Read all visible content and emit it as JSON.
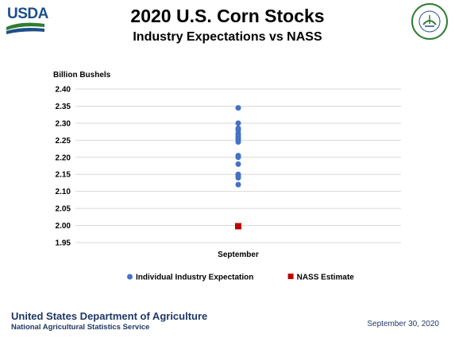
{
  "header": {
    "logo_text": "USDA",
    "title": "2020 U.S. Corn Stocks",
    "subtitle": "Industry Expectations vs NASS",
    "seal_text": "AGRICULTURE COUNTS"
  },
  "colors": {
    "expectation": "#4472c4",
    "nass": "#c00000",
    "gridline": "#d9d9d9",
    "footer": "#1f3864"
  },
  "chart_data": {
    "type": "scatter",
    "ylabel": "Billion Bushels",
    "categories": [
      "September"
    ],
    "ylim": [
      1.95,
      2.4
    ],
    "yticks": [
      "2.40",
      "2.35",
      "2.30",
      "2.25",
      "2.20",
      "2.15",
      "2.10",
      "2.05",
      "2.00",
      "1.95"
    ],
    "grid": true,
    "legend_position": "bottom",
    "series": [
      {
        "name": "Individual Industry Expectation",
        "marker": "circle",
        "color": "#4472c4",
        "x": [
          "September",
          "September",
          "September",
          "September",
          "September",
          "September",
          "September",
          "September",
          "September",
          "September",
          "September",
          "September",
          "September",
          "September",
          "September",
          "September",
          "September"
        ],
        "values": [
          2.345,
          2.3,
          2.285,
          2.28,
          2.27,
          2.265,
          2.26,
          2.255,
          2.25,
          2.245,
          2.205,
          2.2,
          2.18,
          2.15,
          2.145,
          2.14,
          2.12
        ]
      },
      {
        "name": "NASS Estimate",
        "marker": "square",
        "color": "#c00000",
        "x": [
          "September"
        ],
        "values": [
          1.998
        ]
      }
    ]
  },
  "footer": {
    "org": "United States Department of Agriculture",
    "agency": "National Agricultural Statistics Service",
    "date": "September 30, 2020"
  }
}
